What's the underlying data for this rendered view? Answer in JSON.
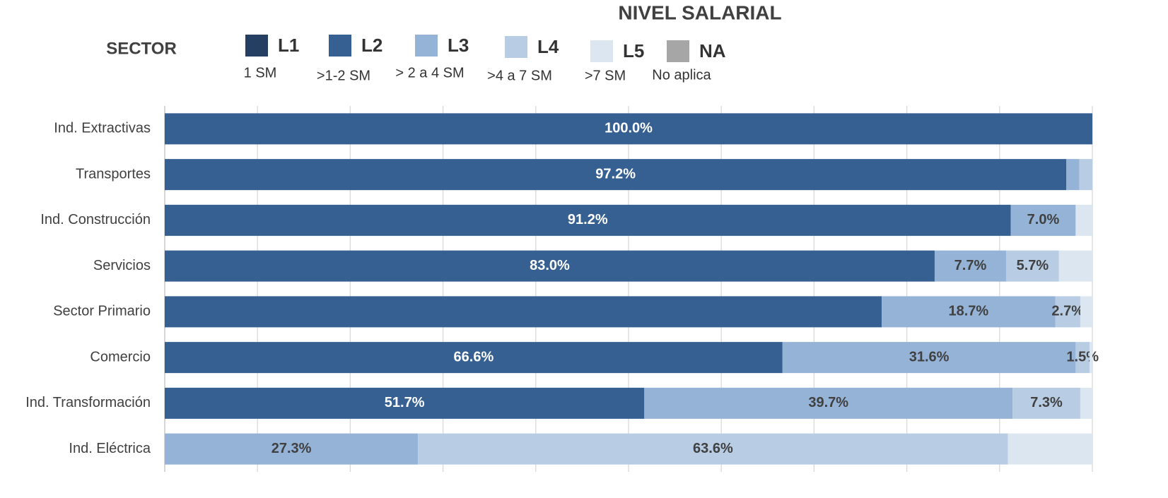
{
  "chart_data": {
    "type": "stacked_bar_horizontal",
    "title": "NIVEL SALARIAL",
    "legend_title": "SECTOR",
    "categories": [
      "Ind. Extractivas",
      "Transportes",
      "Ind. Construcción",
      "Servicios",
      "Sector Primario",
      "Comercio",
      "Ind. Transformación",
      "Ind. Eléctrica"
    ],
    "series": [
      {
        "name": "L1",
        "description": "1 SM",
        "color": "#253f63",
        "label_color": "#ffffff",
        "values": [
          0,
          0,
          0,
          0,
          0,
          0,
          0,
          0
        ]
      },
      {
        "name": "L2",
        "description": ">1-2 SM",
        "color": "#366092",
        "label_color": "#ffffff",
        "values": [
          100.0,
          97.2,
          91.2,
          83.0,
          77.3,
          66.6,
          51.7,
          0
        ],
        "value_labels": [
          "100.0%",
          "97.2%",
          "91.2%",
          "83.0%",
          null,
          "66.6%",
          "51.7%",
          null
        ]
      },
      {
        "name": "L3",
        "description": "> 2 a 4 SM",
        "color": "#95b3d7",
        "label_color": "#404040",
        "values": [
          0,
          1.4,
          7.0,
          7.7,
          18.7,
          31.6,
          39.7,
          27.3
        ],
        "value_labels": [
          null,
          null,
          "7.0%",
          "7.7%",
          "18.7%",
          "31.6%",
          "39.7%",
          "27.3%"
        ]
      },
      {
        "name": "L4",
        "description": ">4 a 7 SM",
        "color": "#b8cce4",
        "label_color": "#404040",
        "values": [
          0,
          1.4,
          0,
          5.7,
          2.7,
          1.5,
          7.3,
          63.6
        ],
        "value_labels": [
          null,
          null,
          null,
          "5.7%",
          "2.7%",
          "1.5%",
          "7.3%",
          "63.6%"
        ]
      },
      {
        "name": "L5",
        "description": ">7 SM",
        "color": "#dce6f1",
        "label_color": "#404040",
        "values": [
          0,
          0,
          1.8,
          3.6,
          1.3,
          0.3,
          1.3,
          9.1
        ]
      },
      {
        "name": "NA",
        "description": "No aplica",
        "color": "#a6a6a6",
        "label_color": "#404040",
        "values": [
          0,
          0,
          0,
          0,
          0,
          0,
          0,
          0
        ]
      }
    ],
    "xlim": [
      0,
      100
    ],
    "xticks": [
      0,
      10,
      20,
      30,
      40,
      50,
      60,
      70,
      80,
      90,
      100
    ],
    "grid": true
  }
}
